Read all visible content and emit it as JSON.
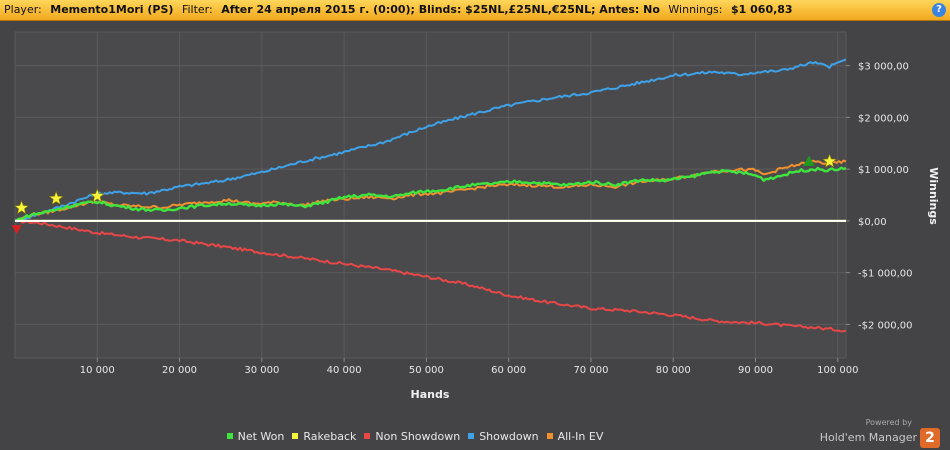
{
  "header": {
    "player_label": "Player:",
    "player_value": "Memento1Mori (PS)",
    "filter_label": "Filter:",
    "filter_value": "After 24 апреля 2015 г. (0:00); Blinds: $25NL,£25NL,€25NL; Antes: No",
    "winnings_label": "Winnings:",
    "winnings_value": "$1 060,83",
    "help_icon": "help-icon"
  },
  "chart_data": {
    "type": "line",
    "xlabel": "Hands",
    "ylabel": "Winnings",
    "xlim": [
      0,
      101000
    ],
    "ylim": [
      -2650,
      3650
    ],
    "grid": true,
    "x_ticks": [
      10000,
      20000,
      30000,
      40000,
      50000,
      60000,
      70000,
      80000,
      90000,
      100000
    ],
    "x_tick_labels": [
      "10 000",
      "20 000",
      "30 000",
      "40 000",
      "50 000",
      "60 000",
      "70 000",
      "80 000",
      "90 000",
      "100 000"
    ],
    "y_ticks": [
      3000,
      2000,
      1000,
      0,
      -1000,
      -2000
    ],
    "y_tick_labels": [
      "$3 000,00",
      "$2 000,00",
      "$1 000,00",
      "$0,00",
      "-$1 000,00",
      "-$2 000,00"
    ],
    "legend_position": "bottom",
    "series": [
      {
        "name": "Net Won",
        "color": "#3fe53f",
        "x": [
          0,
          2000,
          4000,
          6000,
          8000,
          10000,
          12000,
          15000,
          18000,
          20000,
          23000,
          26000,
          29000,
          32000,
          35000,
          38000,
          40000,
          43000,
          46000,
          49000,
          52000,
          55000,
          58000,
          61000,
          64000,
          67000,
          70000,
          73000,
          76000,
          79000,
          82000,
          85000,
          88000,
          90000,
          91000,
          93000,
          95000,
          97000,
          99000,
          101000
        ],
        "y": [
          0,
          120,
          180,
          260,
          330,
          370,
          300,
          230,
          200,
          250,
          300,
          340,
          290,
          330,
          280,
          370,
          460,
          500,
          470,
          560,
          600,
          680,
          720,
          760,
          730,
          690,
          750,
          700,
          790,
          780,
          850,
          960,
          940,
          880,
          800,
          870,
          960,
          1000,
          980,
          1020
        ]
      },
      {
        "name": "Rakeback",
        "color": "#f5f53a",
        "x": [
          0,
          101000
        ],
        "y": [
          0,
          0
        ]
      },
      {
        "name": "Non Showdown",
        "color": "#e84747",
        "x": [
          0,
          3000,
          6000,
          10000,
          15000,
          20000,
          25000,
          30000,
          35000,
          40000,
          45000,
          50000,
          55000,
          60000,
          65000,
          70000,
          75000,
          80000,
          85000,
          88000,
          91000,
          94000,
          97000,
          101000
        ],
        "y": [
          0,
          -40,
          -120,
          -230,
          -320,
          -380,
          -490,
          -610,
          -720,
          -830,
          -940,
          -1080,
          -1230,
          -1440,
          -1580,
          -1690,
          -1740,
          -1820,
          -1930,
          -1960,
          -1980,
          -2030,
          -2060,
          -2120
        ]
      },
      {
        "name": "Showdown",
        "color": "#3fa2e8",
        "x": [
          0,
          3000,
          6000,
          10000,
          13000,
          16000,
          20000,
          25000,
          30000,
          35000,
          40000,
          45000,
          50000,
          55000,
          60000,
          65000,
          70000,
          75000,
          80000,
          85000,
          88000,
          90000,
          93000,
          97000,
          99000,
          101000
        ],
        "y": [
          0,
          140,
          300,
          530,
          550,
          530,
          660,
          770,
          940,
          1150,
          1330,
          1530,
          1820,
          2040,
          2230,
          2370,
          2480,
          2640,
          2810,
          2880,
          2830,
          2870,
          2900,
          3060,
          2980,
          3120
        ]
      },
      {
        "name": "All-In EV",
        "color": "#f0902e",
        "x": [
          0,
          2000,
          4000,
          6000,
          8000,
          10000,
          12000,
          15000,
          18000,
          20000,
          23000,
          26000,
          29000,
          32000,
          35000,
          38000,
          40000,
          43000,
          46000,
          49000,
          52000,
          55000,
          58000,
          61000,
          64000,
          67000,
          70000,
          73000,
          76000,
          79000,
          82000,
          85000,
          88000,
          90000,
          91000,
          93000,
          95000,
          97000,
          99000,
          101000
        ],
        "y": [
          0,
          120,
          170,
          240,
          320,
          380,
          310,
          280,
          260,
          310,
          360,
          400,
          330,
          360,
          300,
          400,
          420,
          460,
          440,
          520,
          540,
          610,
          680,
          700,
          680,
          650,
          700,
          660,
          760,
          790,
          870,
          960,
          990,
          980,
          890,
          1000,
          1080,
          1150,
          1100,
          1150
        ]
      }
    ],
    "markers": [
      {
        "type": "star",
        "color": "#f5f53a",
        "x": 800,
        "y": 250
      },
      {
        "type": "star",
        "color": "#f5f53a",
        "x": 5000,
        "y": 430
      },
      {
        "type": "star",
        "color": "#f5f53a",
        "x": 10000,
        "y": 480
      },
      {
        "type": "star",
        "color": "#f5f53a",
        "x": 99000,
        "y": 1150
      },
      {
        "type": "triangle-down",
        "color": "#d82020",
        "x": 200,
        "y": -160
      },
      {
        "type": "triangle-up",
        "color": "#1f9a1f",
        "x": 96500,
        "y": 1160
      }
    ]
  },
  "branding": {
    "powered_by": "Powered by",
    "product": "Hold'em Manager",
    "badge": "2"
  }
}
